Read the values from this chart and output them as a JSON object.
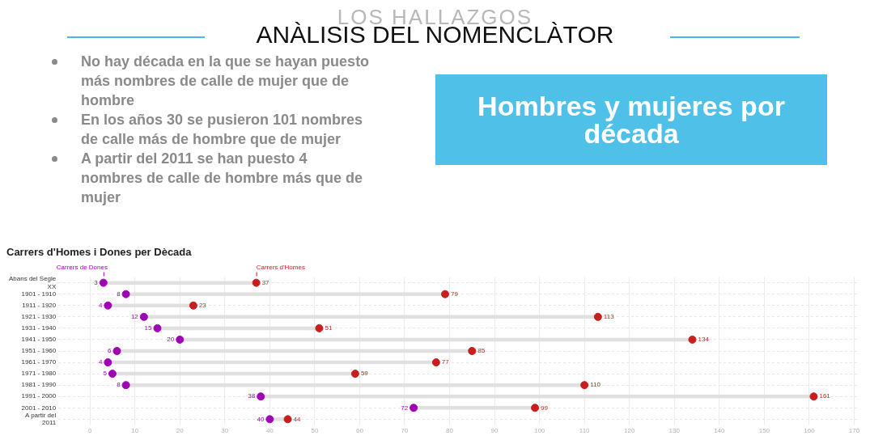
{
  "chart_data": {
    "type": "scatter",
    "orientation": "horizontal",
    "title": "Carrers d'Homes i Dones per Dècada",
    "annotations": [
      "LOS HALLAZGOS",
      "ANÀLISIS DEL NOMENCLÀTOR",
      "No hay década en la que se hayan puesto más nombres de calle de mujer que de hombre",
      "En los años 30 se pusieron 101 nombres de calle más de hombre que de mujer",
      "A partir del 2011 se han puesto 4 nombres de calle de hombre más que de mujer",
      "Hombres y mujeres por década"
    ],
    "categories": [
      "Abans del Segle XX",
      "1901 - 1910",
      "1911 - 1920",
      "1921 - 1930",
      "1931 - 1940",
      "1941 - 1950",
      "1951 - 1960",
      "1961 - 1970",
      "1971 - 1980",
      "1981 - 1990",
      "1991 - 2000",
      "2001 - 2010",
      "A partir del 2011"
    ],
    "series": [
      {
        "name": "Carrers de Dones",
        "color": "#a000b4",
        "values": [
          3,
          8,
          4,
          12,
          15,
          20,
          6,
          4,
          5,
          8,
          38,
          72,
          40
        ]
      },
      {
        "name": "Carrers d'Homes",
        "color": "#c81e1e",
        "values": [
          37,
          79,
          23,
          113,
          51,
          134,
          85,
          77,
          59,
          110,
          161,
          99,
          44
        ]
      }
    ],
    "xlim": [
      -7,
      171
    ],
    "xticks": [
      0,
      10,
      20,
      30,
      40,
      50,
      60,
      70,
      80,
      90,
      100,
      110,
      120,
      130,
      140,
      150,
      160,
      170
    ],
    "grid": true,
    "marker": "circle",
    "data_labels": true
  }
}
